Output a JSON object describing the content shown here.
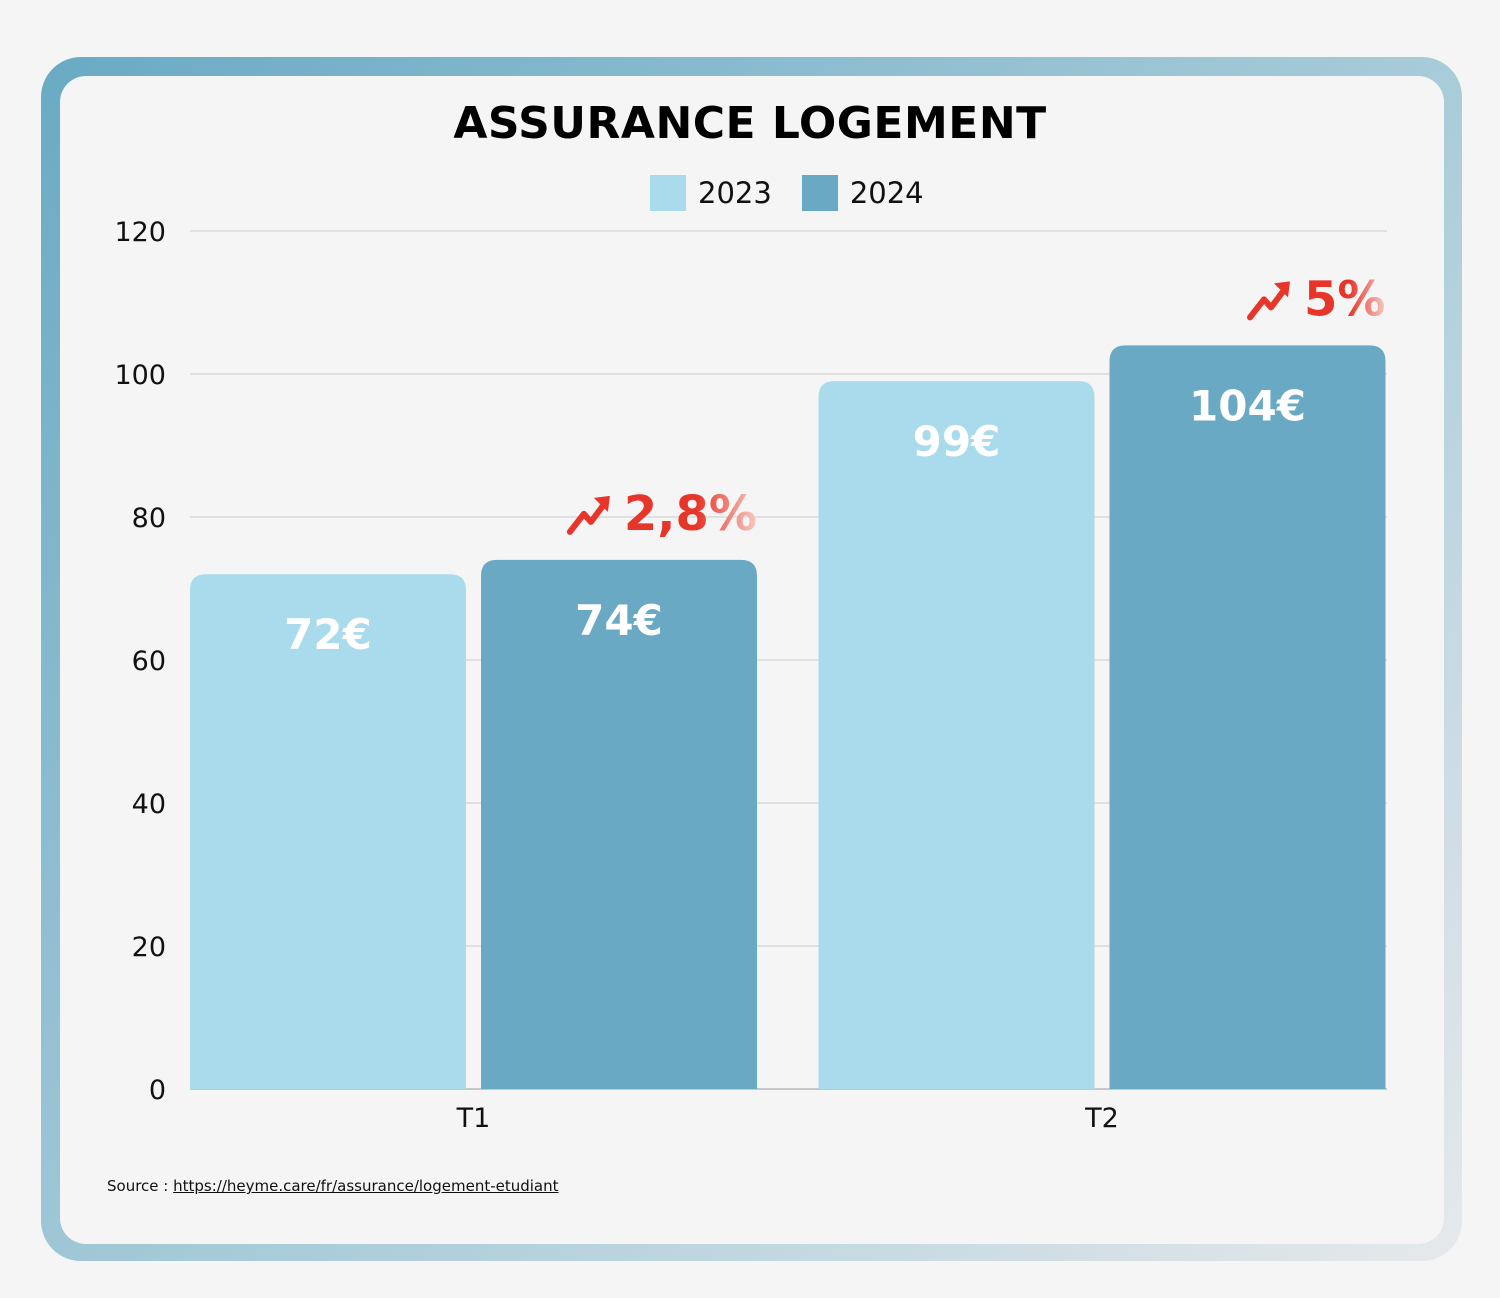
{
  "chart_data": {
    "type": "bar",
    "title": "ASSURANCE LOGEMENT",
    "categories": [
      "T1",
      "T2"
    ],
    "series": [
      {
        "name": "2023",
        "values": [
          72,
          99
        ],
        "labels": [
          "72€",
          "99€"
        ],
        "color": "#a9dbec"
      },
      {
        "name": "2024",
        "values": [
          74,
          104
        ],
        "labels": [
          "74€",
          "104€"
        ],
        "color": "#69a9c3"
      }
    ],
    "ylim": [
      0,
      120
    ],
    "yticks": [
      0,
      20,
      40,
      60,
      80,
      100,
      120
    ],
    "grid": true,
    "legend_position": "top-center",
    "annotations": [
      {
        "category": "T1",
        "text": "2,8%",
        "icon": "trending-up-arrow-icon",
        "color": "#e8352a"
      },
      {
        "category": "T2",
        "text": "5%",
        "icon": "trending-up-arrow-icon",
        "color": "#e8352a"
      }
    ]
  },
  "source": {
    "prefix": "Source : ",
    "url": "https://heyme.care/fr/assurance/logement-etudiant"
  }
}
